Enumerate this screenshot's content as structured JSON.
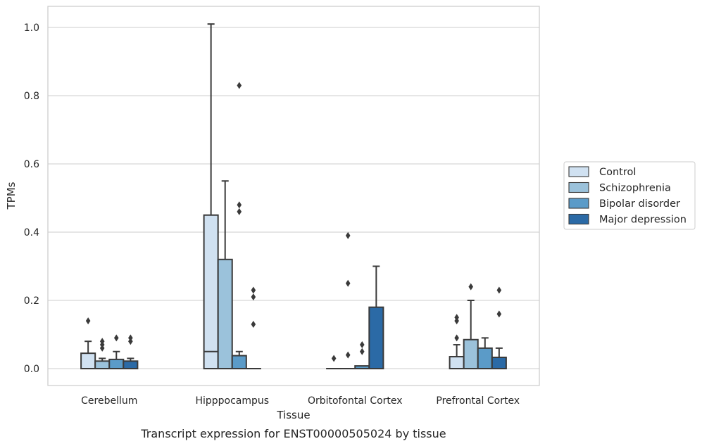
{
  "caption": "Transcript expression for ENST00000505024 by tissue",
  "chart_data": {
    "type": "box",
    "xlabel": "Tissue",
    "ylabel": "TPMs",
    "ylim": [
      -0.05,
      1.06
    ],
    "yticks": [
      "0.0",
      "0.2",
      "0.4",
      "0.6",
      "0.8",
      "1.0"
    ],
    "grid": true,
    "legend_position": "right",
    "categories": [
      "Cerebellum",
      "Hipppocampus",
      "Orbitofontal Cortex",
      "Prefrontal Cortex"
    ],
    "series": [
      {
        "name": "Control",
        "color": "#d0e1f1",
        "boxes": [
          {
            "q1": 0.0,
            "median": 0.0,
            "q3": 0.045,
            "whislo": 0.0,
            "whishi": 0.08,
            "fliers": [
              0.14
            ]
          },
          {
            "q1": 0.0,
            "median": 0.05,
            "q3": 0.45,
            "whislo": 0.0,
            "whishi": 1.01,
            "fliers": []
          },
          {
            "q1": 0.0,
            "median": 0.0,
            "q3": 0.0,
            "whislo": 0.0,
            "whishi": 0.0,
            "fliers": [
              0.03
            ]
          },
          {
            "q1": 0.0,
            "median": 0.0,
            "q3": 0.035,
            "whislo": 0.0,
            "whishi": 0.07,
            "fliers": [
              0.09,
              0.14,
              0.15
            ]
          }
        ]
      },
      {
        "name": "Schizophrenia",
        "color": "#9bc2db",
        "boxes": [
          {
            "q1": 0.0,
            "median": 0.0,
            "q3": 0.022,
            "whislo": 0.0,
            "whishi": 0.03,
            "fliers": [
              0.06,
              0.07,
              0.08
            ]
          },
          {
            "q1": 0.0,
            "median": 0.0,
            "q3": 0.32,
            "whislo": 0.0,
            "whishi": 0.55,
            "fliers": []
          },
          {
            "q1": 0.0,
            "median": 0.0,
            "q3": 0.0,
            "whislo": 0.0,
            "whishi": 0.0,
            "fliers": [
              0.04,
              0.25,
              0.39
            ]
          },
          {
            "q1": 0.0,
            "median": 0.0,
            "q3": 0.085,
            "whislo": 0.0,
            "whishi": 0.2,
            "fliers": [
              0.24
            ]
          }
        ]
      },
      {
        "name": "Bipolar disorder",
        "color": "#5b9bc8",
        "boxes": [
          {
            "q1": 0.0,
            "median": 0.0,
            "q3": 0.027,
            "whislo": 0.0,
            "whishi": 0.05,
            "fliers": [
              0.09
            ]
          },
          {
            "q1": 0.0,
            "median": 0.0,
            "q3": 0.038,
            "whislo": 0.0,
            "whishi": 0.05,
            "fliers": [
              0.46,
              0.48,
              0.83
            ]
          },
          {
            "q1": 0.0,
            "median": 0.0,
            "q3": 0.008,
            "whislo": 0.0,
            "whishi": 0.008,
            "fliers": [
              0.05,
              0.07
            ]
          },
          {
            "q1": 0.0,
            "median": 0.0,
            "q3": 0.06,
            "whislo": 0.0,
            "whishi": 0.09,
            "fliers": []
          }
        ]
      },
      {
        "name": "Major depression",
        "color": "#2b6aa6",
        "boxes": [
          {
            "q1": 0.0,
            "median": 0.0,
            "q3": 0.022,
            "whislo": 0.0,
            "whishi": 0.03,
            "fliers": [
              0.08,
              0.09
            ]
          },
          {
            "q1": 0.0,
            "median": 0.0,
            "q3": 0.0,
            "whislo": 0.0,
            "whishi": 0.0,
            "fliers": [
              0.13,
              0.21,
              0.23
            ]
          },
          {
            "q1": 0.0,
            "median": 0.0,
            "q3": 0.18,
            "whislo": 0.0,
            "whishi": 0.3,
            "fliers": []
          },
          {
            "q1": 0.0,
            "median": 0.0,
            "q3": 0.033,
            "whislo": 0.0,
            "whishi": 0.06,
            "fliers": [
              0.16,
              0.23
            ]
          }
        ]
      }
    ]
  }
}
